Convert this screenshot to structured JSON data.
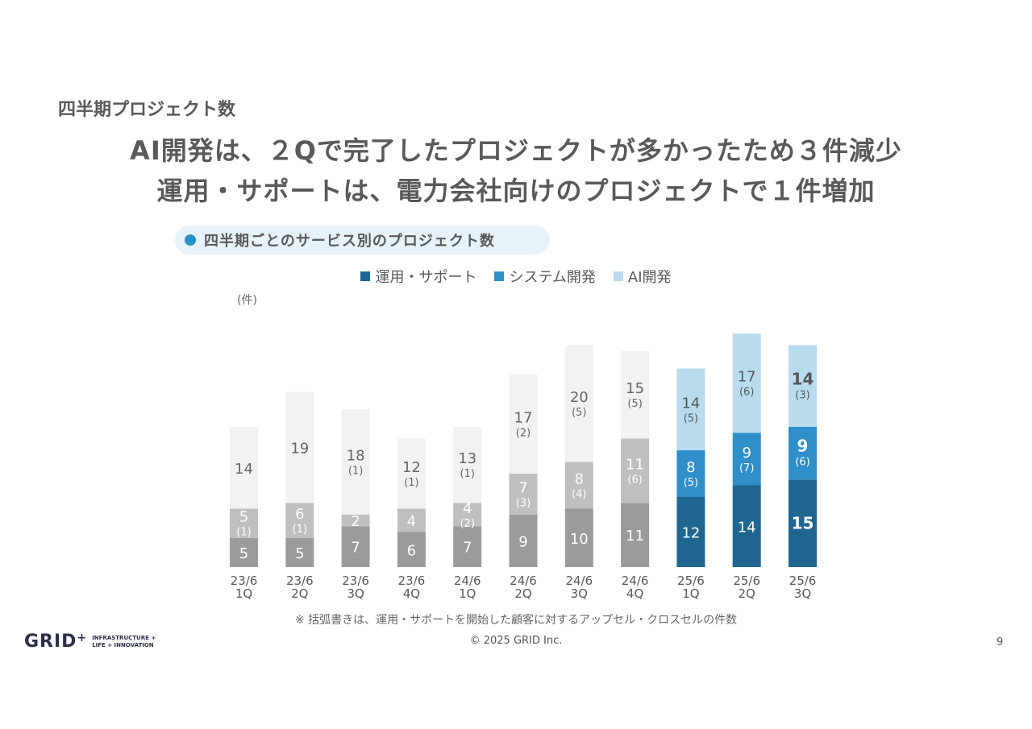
{
  "header": {
    "section_title": "四半期プロジェクト数",
    "headline_line1": "AI開発は、２Qで完了したプロジェクトが多かったため３件減少",
    "headline_line2": "運用・サポートは、電力会社向けのプロジェクトで１件増加"
  },
  "chart_title": "四半期ごとのサービス別のプロジェクト数",
  "legend": [
    {
      "label": "運用・サポート",
      "color": "#1f6690"
    },
    {
      "label": "システム開発",
      "color": "#2e8fc9"
    },
    {
      "label": "AI開発",
      "color": "#b8dcee"
    }
  ],
  "unit_label": "(件)",
  "chart_data": {
    "type": "bar",
    "stacked": true,
    "categories": [
      "23/6 1Q",
      "23/6 2Q",
      "23/6 3Q",
      "23/6 4Q",
      "24/6 1Q",
      "24/6 2Q",
      "24/6 3Q",
      "24/6 4Q",
      "25/6 1Q",
      "25/6 2Q",
      "25/6 3Q"
    ],
    "series": [
      {
        "name": "運用・サポート",
        "values": [
          5,
          5,
          7,
          6,
          7,
          9,
          10,
          11,
          12,
          14,
          15
        ],
        "sub_values": [
          null,
          null,
          null,
          null,
          null,
          null,
          null,
          null,
          null,
          null,
          null
        ]
      },
      {
        "name": "システム開発",
        "values": [
          5,
          6,
          2,
          4,
          4,
          7,
          8,
          11,
          8,
          9,
          9
        ],
        "sub_values": [
          "(1)",
          "(1)",
          null,
          null,
          "(2)",
          "(3)",
          "(4)",
          "(6)",
          "(5)",
          "(7)",
          "(6)"
        ]
      },
      {
        "name": "AI開発",
        "values": [
          14,
          19,
          18,
          12,
          13,
          17,
          20,
          15,
          14,
          17,
          14
        ],
        "sub_values": [
          null,
          null,
          "(1)",
          "(1)",
          "(1)",
          "(2)",
          "(5)",
          "(5)",
          "(5)",
          "(6)",
          "(3)"
        ]
      }
    ],
    "highlight_from_index": 8,
    "emphasized_index": 10,
    "historical_colors": [
      "#9b9b9b",
      "#bfbfbf",
      "#f2f2f2"
    ]
  },
  "footnote": "※ 括弧書きは、運用・サポートを開始した顧客に対するアップセル・クロスセルの件数",
  "footer": {
    "logo_text": "GRID",
    "logo_plus": "+",
    "logo_tag_line1": "INFRASTRUCTURE +",
    "logo_tag_line2": "LIFE + INNOVATION",
    "copyright": "© 2025 GRID Inc.",
    "page_number": "9"
  }
}
